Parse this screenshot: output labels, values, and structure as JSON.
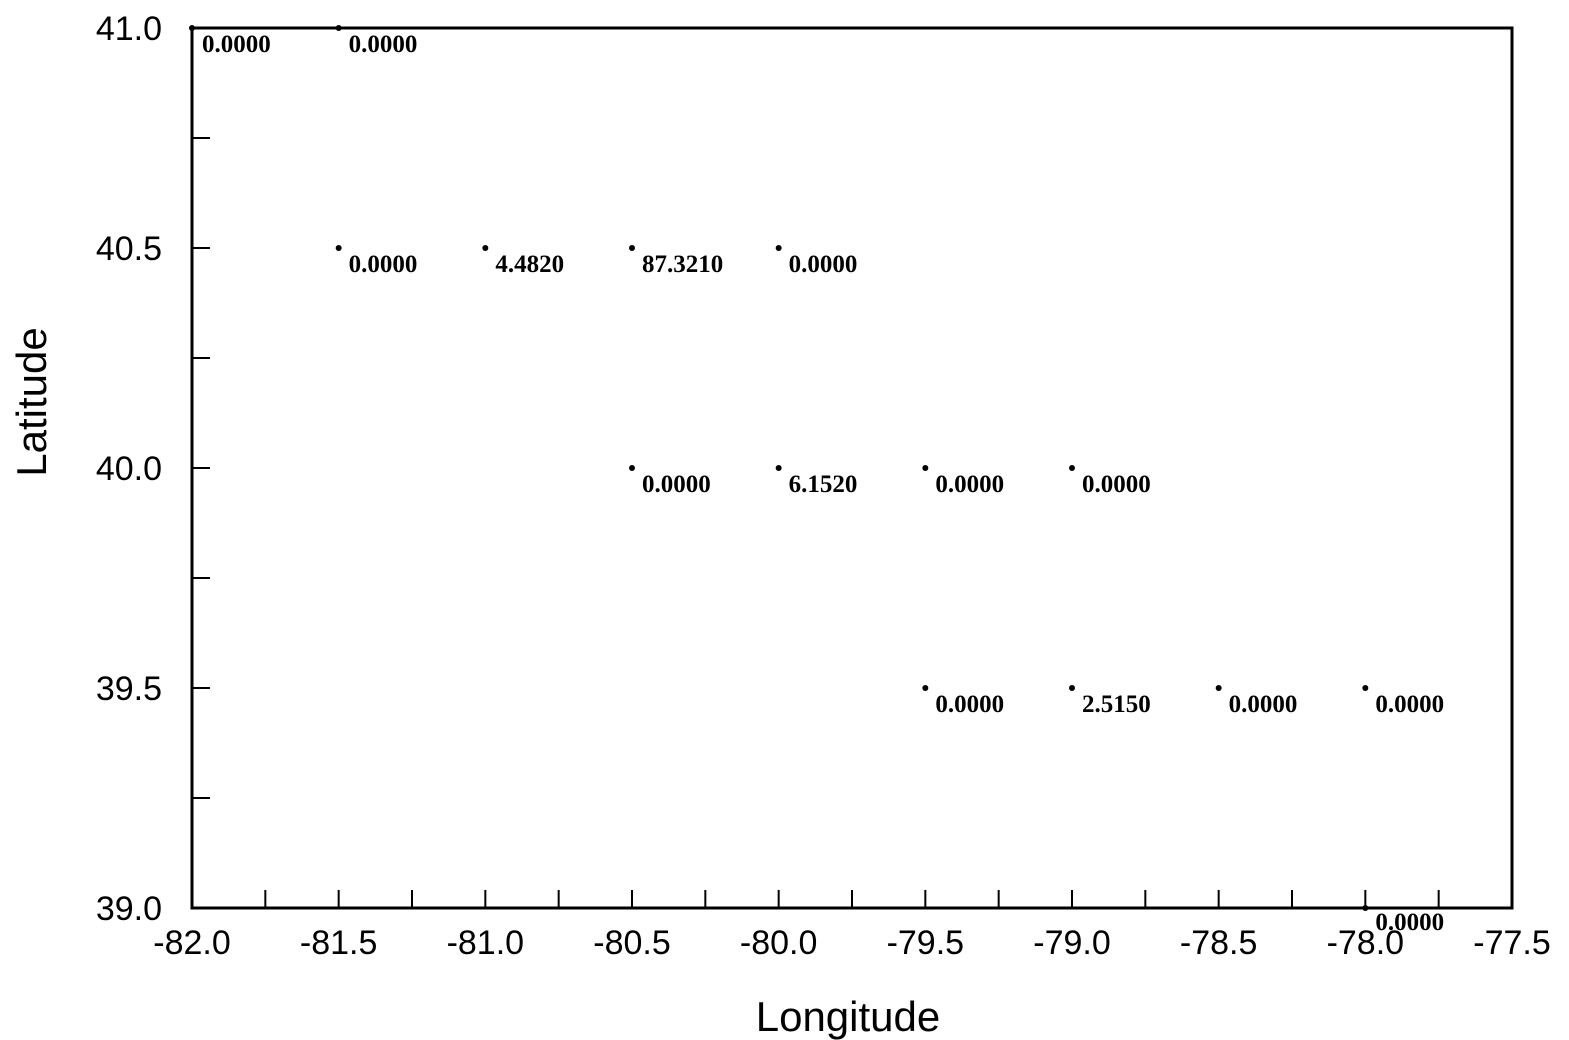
{
  "chart_data": {
    "type": "scatter",
    "title": "",
    "xlabel": "Longitude",
    "ylabel": "Latitude",
    "xlim": [
      -82.0,
      -77.5
    ],
    "ylim": [
      39.0,
      41.0
    ],
    "x_ticks": [
      "-82.0",
      "-81.5",
      "-81.0",
      "-80.5",
      "-80.0",
      "-79.5",
      "-79.0",
      "-78.5",
      "-78.0",
      "-77.5"
    ],
    "y_ticks": [
      "39.0",
      "39.5",
      "40.0",
      "40.5",
      "41.0"
    ],
    "grid": false,
    "legend": "none",
    "points": [
      {
        "x": -82.0,
        "y": 41.0,
        "label": "0.0000"
      },
      {
        "x": -81.5,
        "y": 41.0,
        "label": "0.0000"
      },
      {
        "x": -81.5,
        "y": 40.5,
        "label": "0.0000"
      },
      {
        "x": -81.0,
        "y": 40.5,
        "label": "4.4820"
      },
      {
        "x": -80.5,
        "y": 40.5,
        "label": "87.3210"
      },
      {
        "x": -80.0,
        "y": 40.5,
        "label": "0.0000"
      },
      {
        "x": -80.5,
        "y": 40.0,
        "label": "0.0000"
      },
      {
        "x": -80.0,
        "y": 40.0,
        "label": "6.1520"
      },
      {
        "x": -79.5,
        "y": 40.0,
        "label": "0.0000"
      },
      {
        "x": -79.0,
        "y": 40.0,
        "label": "0.0000"
      },
      {
        "x": -79.5,
        "y": 39.5,
        "label": "0.0000"
      },
      {
        "x": -79.0,
        "y": 39.5,
        "label": "2.5150"
      },
      {
        "x": -78.5,
        "y": 39.5,
        "label": "0.0000"
      },
      {
        "x": -78.0,
        "y": 39.5,
        "label": "0.0000"
      },
      {
        "x": -78.0,
        "y": 39.0,
        "label": "0.0000"
      }
    ]
  },
  "colors": {
    "marker": "#000000",
    "axis": "#000000",
    "background": "#ffffff"
  }
}
